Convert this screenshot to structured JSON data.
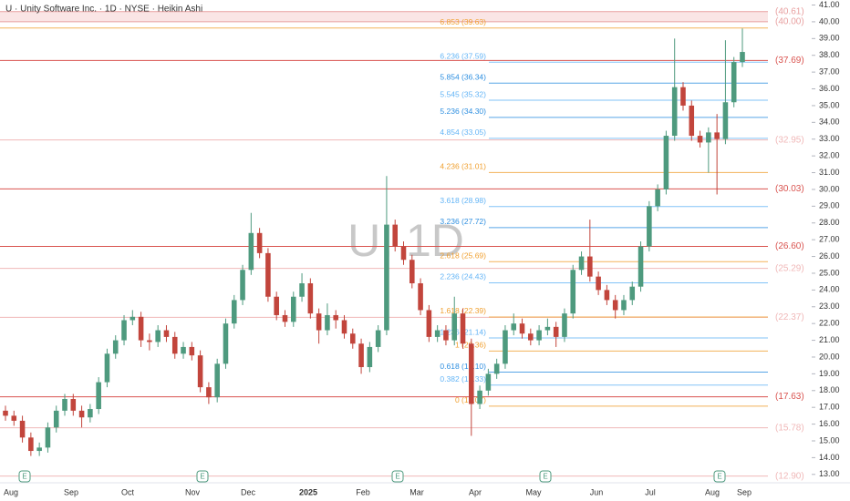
{
  "chart_data": {
    "type": "candlestick",
    "title": "U · Unity Software Inc. · 1D · NYSE · Heikin Ashi",
    "watermark": "U, 1D",
    "up_color": "#4e9a7e",
    "down_color": "#c2453c",
    "ylim": [
      12.5,
      41.3
    ],
    "yticks": [
      {
        "value": 13,
        "label": "13.00"
      },
      {
        "value": 14,
        "label": "14.00"
      },
      {
        "value": 15,
        "label": "15.00"
      },
      {
        "value": 16,
        "label": "16.00"
      },
      {
        "value": 17,
        "label": "17.00"
      },
      {
        "value": 18,
        "label": "18.00"
      },
      {
        "value": 19,
        "label": "19.00"
      },
      {
        "value": 20,
        "label": "20.00"
      },
      {
        "value": 21,
        "label": "21.00"
      },
      {
        "value": 22,
        "label": "22.00"
      },
      {
        "value": 23,
        "label": "23.00"
      },
      {
        "value": 24,
        "label": "24.00"
      },
      {
        "value": 25,
        "label": "25.00"
      },
      {
        "value": 26,
        "label": "26.00"
      },
      {
        "value": 27,
        "label": "27.00"
      },
      {
        "value": 28,
        "label": "28.00"
      },
      {
        "value": 29,
        "label": "29.00"
      },
      {
        "value": 30,
        "label": "30.00"
      },
      {
        "value": 31,
        "label": "31.00"
      },
      {
        "value": 32,
        "label": "32.00"
      },
      {
        "value": 33,
        "label": "33.00"
      },
      {
        "value": 34,
        "label": "34.00"
      },
      {
        "value": 35,
        "label": "35.00"
      },
      {
        "value": 36,
        "label": "36.00"
      },
      {
        "value": 37,
        "label": "37.00"
      },
      {
        "value": 38,
        "label": "38.00"
      },
      {
        "value": 39,
        "label": "39.00"
      },
      {
        "value": 40,
        "label": "40.00"
      },
      {
        "value": 41,
        "label": "41.00"
      }
    ],
    "x_labels": [
      "Aug",
      "Sep",
      "Oct",
      "Nov",
      "Dec",
      "2025",
      "Feb",
      "Mar",
      "Apr",
      "May",
      "Jun",
      "Jul",
      "Aug",
      "Sep"
    ],
    "earnings_markers": [
      "E",
      "E",
      "E",
      "E",
      "E"
    ],
    "levels": [
      {
        "value": 40.61,
        "label": "(40.61)",
        "color": "#e8a0a0"
      },
      {
        "value": 40.0,
        "label": "(40.00)",
        "color": "#e8a0a0"
      },
      {
        "value": 37.69,
        "label": "(37.69)",
        "color": "#d9534f"
      },
      {
        "value": 32.95,
        "label": "(32.95)",
        "color": "#f0b8b8"
      },
      {
        "value": 30.03,
        "label": "(30.03)",
        "color": "#d9534f"
      },
      {
        "value": 26.6,
        "label": "(26.60)",
        "color": "#d9534f"
      },
      {
        "value": 25.29,
        "label": "(25.29)",
        "color": "#f0b8b8"
      },
      {
        "value": 22.37,
        "label": "(22.37)",
        "color": "#f0b8b8"
      },
      {
        "value": 17.63,
        "label": "(17.63)",
        "color": "#d9534f"
      },
      {
        "value": 15.78,
        "label": "(15.78)",
        "color": "#f0b8b8"
      },
      {
        "value": 12.9,
        "label": "(12.90)",
        "color": "#f0b8b8"
      }
    ],
    "fib_levels": [
      {
        "value": 39.63,
        "label": "6.853 (39.63)",
        "color": "#f0a030"
      },
      {
        "value": 37.59,
        "label": "6.236 (37.59)",
        "color": "#64b5f6"
      },
      {
        "value": 36.34,
        "label": "5.854 (36.34)",
        "color": "#2e8fe0"
      },
      {
        "value": 35.32,
        "label": "5.545 (35.32)",
        "color": "#64b5f6"
      },
      {
        "value": 34.3,
        "label": "5.236 (34.30)",
        "color": "#2e8fe0"
      },
      {
        "value": 33.05,
        "label": "4.854 (33.05)",
        "color": "#64b5f6"
      },
      {
        "value": 31.01,
        "label": "4.236 (31.01)",
        "color": "#f0a030"
      },
      {
        "value": 28.98,
        "label": "3.618 (28.98)",
        "color": "#64b5f6"
      },
      {
        "value": 27.72,
        "label": "3.236 (27.72)",
        "color": "#2e8fe0"
      },
      {
        "value": 25.69,
        "label": "2.618 (25.69)",
        "color": "#f0a030"
      },
      {
        "value": 24.43,
        "label": "2.236 (24.43)",
        "color": "#64b5f6"
      },
      {
        "value": 22.39,
        "label": "1.618 (22.39)",
        "color": "#f0a030"
      },
      {
        "value": 21.14,
        "label": "1.236 (21.14)",
        "color": "#64b5f6"
      },
      {
        "value": 20.36,
        "label": "1 (20.36)",
        "color": "#f0a030"
      },
      {
        "value": 19.1,
        "label": "0.618 (19.10)",
        "color": "#2e8fe0"
      },
      {
        "value": 18.33,
        "label": "0.382 (18.33)",
        "color": "#64b5f6"
      },
      {
        "value": 17.07,
        "label": "0 (17.07)",
        "color": "#f0a030"
      }
    ],
    "candles": [
      [
        16.8,
        17.1,
        16.2,
        16.5
      ],
      [
        16.5,
        16.8,
        15.9,
        16.2
      ],
      [
        16.2,
        16.5,
        14.9,
        15.2
      ],
      [
        15.2,
        15.5,
        14.1,
        14.4
      ],
      [
        14.4,
        14.9,
        14.1,
        14.6
      ],
      [
        14.6,
        16.1,
        14.3,
        15.8
      ],
      [
        15.8,
        17.1,
        15.5,
        16.8
      ],
      [
        16.8,
        17.8,
        16.5,
        17.5
      ],
      [
        17.5,
        17.8,
        16.5,
        16.8
      ],
      [
        16.8,
        17.1,
        15.8,
        16.4
      ],
      [
        16.4,
        17.2,
        16.1,
        16.9
      ],
      [
        16.9,
        18.8,
        16.6,
        18.5
      ],
      [
        18.5,
        20.5,
        18.2,
        20.2
      ],
      [
        20.2,
        21.3,
        19.9,
        21.0
      ],
      [
        21.0,
        22.5,
        20.7,
        22.2
      ],
      [
        22.2,
        22.8,
        21.9,
        22.4
      ],
      [
        22.4,
        22.7,
        20.6,
        21.0
      ],
      [
        21.0,
        21.4,
        20.4,
        20.9
      ],
      [
        20.9,
        21.9,
        20.6,
        21.6
      ],
      [
        21.6,
        21.9,
        20.9,
        21.2
      ],
      [
        21.2,
        21.5,
        19.9,
        20.2
      ],
      [
        20.2,
        20.9,
        19.9,
        20.6
      ],
      [
        20.6,
        20.9,
        19.8,
        20.1
      ],
      [
        20.1,
        20.4,
        17.9,
        18.2
      ],
      [
        18.2,
        18.5,
        17.2,
        17.6
      ],
      [
        17.6,
        19.9,
        17.3,
        19.6
      ],
      [
        19.6,
        22.3,
        19.3,
        22.0
      ],
      [
        22.0,
        23.7,
        21.7,
        23.4
      ],
      [
        23.4,
        25.5,
        23.1,
        25.2
      ],
      [
        25.2,
        28.6,
        24.9,
        27.4
      ],
      [
        27.4,
        27.7,
        25.9,
        26.2
      ],
      [
        26.2,
        26.5,
        23.3,
        23.6
      ],
      [
        23.6,
        23.9,
        22.2,
        22.5
      ],
      [
        22.5,
        22.8,
        21.8,
        22.1
      ],
      [
        22.1,
        23.9,
        21.8,
        23.6
      ],
      [
        23.6,
        25.0,
        23.3,
        24.4
      ],
      [
        24.4,
        24.7,
        22.3,
        22.6
      ],
      [
        22.6,
        22.9,
        20.8,
        21.6
      ],
      [
        21.6,
        23.2,
        21.3,
        22.5
      ],
      [
        22.5,
        22.8,
        21.7,
        22.2
      ],
      [
        22.2,
        22.5,
        21.1,
        21.4
      ],
      [
        21.4,
        21.7,
        20.5,
        20.8
      ],
      [
        20.8,
        21.1,
        19.0,
        19.4
      ],
      [
        19.4,
        20.9,
        19.1,
        20.6
      ],
      [
        20.6,
        21.9,
        20.3,
        21.6
      ],
      [
        21.6,
        30.8,
        21.3,
        27.9
      ],
      [
        27.9,
        28.2,
        26.3,
        26.6
      ],
      [
        26.6,
        26.9,
        25.5,
        25.8
      ],
      [
        25.8,
        26.1,
        24.1,
        24.4
      ],
      [
        24.4,
        24.7,
        22.5,
        22.8
      ],
      [
        22.8,
        23.1,
        20.9,
        21.2
      ],
      [
        21.2,
        21.9,
        20.9,
        21.6
      ],
      [
        21.6,
        21.9,
        20.7,
        21.0
      ],
      [
        21.0,
        23.6,
        20.7,
        22.6
      ],
      [
        22.6,
        22.9,
        20.5,
        20.8
      ],
      [
        20.8,
        21.1,
        15.3,
        17.2
      ],
      [
        17.2,
        18.3,
        16.9,
        18.0
      ],
      [
        18.0,
        19.3,
        17.7,
        19.0
      ],
      [
        19.0,
        19.9,
        18.7,
        19.6
      ],
      [
        19.6,
        21.9,
        19.3,
        21.6
      ],
      [
        21.6,
        22.6,
        21.3,
        22.0
      ],
      [
        22.0,
        22.3,
        21.1,
        21.4
      ],
      [
        21.4,
        21.7,
        20.7,
        21.0
      ],
      [
        21.0,
        21.9,
        20.7,
        21.6
      ],
      [
        21.6,
        22.3,
        21.3,
        21.8
      ],
      [
        21.8,
        22.1,
        20.6,
        21.2
      ],
      [
        21.2,
        22.9,
        20.9,
        22.6
      ],
      [
        22.6,
        25.5,
        22.3,
        25.2
      ],
      [
        25.2,
        26.3,
        24.9,
        26.0
      ],
      [
        26.0,
        28.2,
        24.5,
        24.8
      ],
      [
        24.8,
        25.1,
        23.7,
        24.0
      ],
      [
        24.0,
        24.3,
        23.1,
        23.4
      ],
      [
        23.4,
        23.7,
        22.3,
        22.8
      ],
      [
        22.8,
        23.7,
        22.5,
        23.4
      ],
      [
        23.4,
        24.5,
        23.1,
        24.2
      ],
      [
        24.2,
        26.9,
        23.9,
        26.6
      ],
      [
        26.6,
        29.3,
        26.3,
        29.0
      ],
      [
        29.0,
        30.3,
        28.7,
        30.0
      ],
      [
        30.0,
        33.5,
        29.7,
        33.2
      ],
      [
        33.2,
        39.0,
        32.9,
        36.1
      ],
      [
        36.1,
        36.4,
        34.7,
        35.0
      ],
      [
        35.0,
        35.3,
        32.9,
        33.2
      ],
      [
        33.2,
        33.5,
        32.5,
        32.8
      ],
      [
        32.8,
        33.7,
        31.0,
        33.4
      ],
      [
        33.4,
        34.5,
        29.7,
        33.0
      ],
      [
        33.0,
        38.9,
        32.7,
        35.2
      ],
      [
        35.2,
        37.9,
        34.9,
        37.6
      ],
      [
        37.6,
        39.6,
        37.3,
        38.2
      ]
    ]
  }
}
